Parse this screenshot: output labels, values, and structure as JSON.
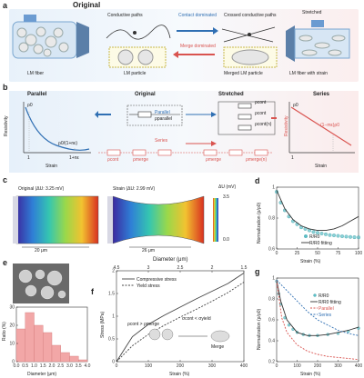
{
  "panel_a": {
    "label": "a",
    "original_title": "Original",
    "stretched_title": "Stretched",
    "conductive_paths": "Conductive paths",
    "crossed_paths": "Crossed conductive paths",
    "contact_dominated": "Contact dominated",
    "merge_dominated": "Merge dominated",
    "lm_fiber": "LM fiber",
    "lm_particle": "LM particle",
    "merged_lm_particle": "Merged LM particle",
    "lm_fiber_strain": "LM fiber with strain",
    "e_symbol": "e",
    "accent_blue": "#2f6fb3",
    "accent_red": "#d9534f"
  },
  "panel_b": {
    "label": "b",
    "parallel_title": "Parallel",
    "original_title": "Original",
    "stretched_title": "Stretched",
    "series_title": "Series",
    "resistivity": "Resistivity",
    "strain": "Strain",
    "p0_left": "ρ0",
    "p0_right": "ρ0",
    "p0_over": "ρ0/(1+nε)",
    "one_plus": "1+nε",
    "one_left": "1",
    "one_right": "1",
    "series_eq": "(1−mε)ρ0",
    "parallel_link": "Parallel",
    "series_link": "Series",
    "r_parallel": "ρparallel",
    "r_cont": "ρcont",
    "r_cont2": "ρcont",
    "r_contn": "ρcont(n)",
    "r_merge": "ρmerge",
    "r_cont_s": "ρcont",
    "r_merge2": "ρmerge",
    "r_merge_n": "ρmerge(n)"
  },
  "panel_c": {
    "label": "c",
    "original_title": "Original (ΔU: 3.25 mV)",
    "strain_title": "Strain (ΔU: 2.99 mV)",
    "scale_left": "20 μm",
    "scale_right": "26 μm",
    "colorbar_label": "ΔU (mV)",
    "colorbar_ticks": [
      "3.5",
      "0.0"
    ]
  },
  "panel_e": {
    "label": "e",
    "ylabel": "Ratio (%)",
    "xlabel": "Diameter (μm)"
  },
  "panel_f": {
    "label": "f",
    "legend": [
      "Compressive stress",
      "Yield stress"
    ],
    "top_axis": "Diameter (μm)",
    "ylabel": "Stress (MPa)",
    "xlabel": "Strain (%)",
    "inset_labels": [
      "ρcont > ρmerge",
      "σcont < σyield",
      "Merge"
    ]
  },
  "panel_d": {
    "label": "d",
    "ylabel": "Normalization (ρ/ρ0)",
    "xlabel": "Strain (%)",
    "legend": [
      "R/R0",
      "R/R0 fitting"
    ]
  },
  "panel_g": {
    "label": "g",
    "ylabel": "Normalization (ρ/ρ0)",
    "xlabel": "Strain (%)",
    "legend": [
      "R/R0",
      "R/R0 fitting",
      "Parallel",
      "Series"
    ]
  },
  "chart_data": [
    {
      "panel": "d",
      "type": "scatter",
      "xlabel": "Strain (%)",
      "ylabel": "Normalization (ρ/ρ0)",
      "xlim": [
        0,
        100
      ],
      "ylim": [
        0.6,
        1.0
      ],
      "xticks": [
        0,
        25,
        50,
        75,
        100
      ],
      "yticks": [
        0.6,
        0.8,
        1.0
      ],
      "series": [
        {
          "name": "R/R0",
          "x": [
            0,
            5,
            10,
            15,
            20,
            25,
            30,
            35,
            40,
            45,
            50,
            55,
            60,
            65,
            70,
            75,
            80,
            85,
            90,
            95,
            100
          ],
          "y": [
            0.97,
            0.9,
            0.85,
            0.81,
            0.78,
            0.76,
            0.74,
            0.73,
            0.72,
            0.71,
            0.705,
            0.7,
            0.695,
            0.69,
            0.688,
            0.685,
            0.682,
            0.68,
            0.678,
            0.676,
            0.675
          ]
        },
        {
          "name": "R/R0 fitting",
          "x": [
            0,
            10,
            20,
            30,
            40,
            50,
            60,
            70,
            80,
            90,
            100
          ],
          "y": [
            0.98,
            0.86,
            0.79,
            0.75,
            0.73,
            0.72,
            0.72,
            0.73,
            0.75,
            0.78,
            0.81
          ]
        }
      ]
    },
    {
      "panel": "e",
      "type": "bar",
      "xlabel": "Diameter (μm)",
      "ylabel": "Ratio (%)",
      "categories": [
        "0.25",
        "0.75",
        "1.25",
        "1.75",
        "2.25",
        "2.75",
        "3.25",
        "3.75"
      ],
      "values": [
        18,
        27,
        20,
        16,
        9,
        5,
        3,
        1
      ],
      "xticks": [
        "0.0",
        "0.5",
        "1.0",
        "1.5",
        "2.0",
        "2.5",
        "3.0",
        "3.5",
        "4.0"
      ],
      "yticks": [
        0,
        10,
        20,
        30
      ],
      "ylim": [
        0,
        30
      ]
    },
    {
      "panel": "f",
      "type": "line",
      "xlabel": "Strain (%)",
      "ylabel": "Stress (MPa)",
      "xlim": [
        0,
        400
      ],
      "ylim": [
        0,
        2.0
      ],
      "xticks": [
        0,
        100,
        200,
        300,
        400
      ],
      "yticks": [
        0.0,
        0.5,
        1.0,
        1.5,
        2.0
      ],
      "top_ticks": [
        "4.5",
        "3",
        "2.5",
        "2",
        "1.5"
      ],
      "series": [
        {
          "name": "Compressive stress",
          "x": [
            0,
            50,
            100,
            150,
            200,
            250,
            300,
            350,
            400
          ],
          "y": [
            0.0,
            0.55,
            0.82,
            1.02,
            1.2,
            1.38,
            1.55,
            1.72,
            1.95
          ]
        },
        {
          "name": "Yield stress",
          "x": [
            0,
            50,
            100,
            150,
            200,
            250,
            300,
            350,
            400
          ],
          "y": [
            0.0,
            0.35,
            0.6,
            0.8,
            0.98,
            1.15,
            1.33,
            1.52,
            1.75
          ]
        }
      ]
    },
    {
      "panel": "g",
      "type": "line",
      "xlabel": "Strain (%)",
      "ylabel": "Normalization (ρ/ρ0)",
      "xlim": [
        0,
        400
      ],
      "ylim": [
        0.2,
        1.0
      ],
      "xticks": [
        0,
        100,
        200,
        300,
        400
      ],
      "yticks": [
        0.2,
        0.4,
        0.6,
        0.8,
        1.0
      ],
      "series": [
        {
          "name": "R/R0",
          "x": [
            0,
            10,
            20,
            40,
            60,
            80,
            100,
            130,
            160,
            200,
            250,
            300,
            350,
            400
          ],
          "y": [
            0.97,
            0.85,
            0.75,
            0.62,
            0.55,
            0.51,
            0.48,
            0.46,
            0.45,
            0.45,
            0.46,
            0.47,
            0.49,
            0.52
          ]
        },
        {
          "name": "R/R0 fitting",
          "x": [
            0,
            20,
            50,
            100,
            150,
            200,
            250,
            300,
            350,
            400
          ],
          "y": [
            0.98,
            0.78,
            0.6,
            0.48,
            0.45,
            0.45,
            0.46,
            0.48,
            0.5,
            0.53
          ]
        },
        {
          "name": "Parallel",
          "x": [
            0,
            25,
            50,
            100,
            150,
            200,
            250,
            300,
            350,
            400
          ],
          "y": [
            0.98,
            0.62,
            0.48,
            0.36,
            0.3,
            0.27,
            0.25,
            0.24,
            0.23,
            0.22
          ]
        },
        {
          "name": "Series",
          "x": [
            0,
            50,
            100,
            150,
            200,
            250,
            300,
            350,
            400
          ],
          "y": [
            0.98,
            0.88,
            0.78,
            0.68,
            0.6,
            0.55,
            0.5,
            0.47,
            0.45
          ]
        }
      ]
    }
  ]
}
